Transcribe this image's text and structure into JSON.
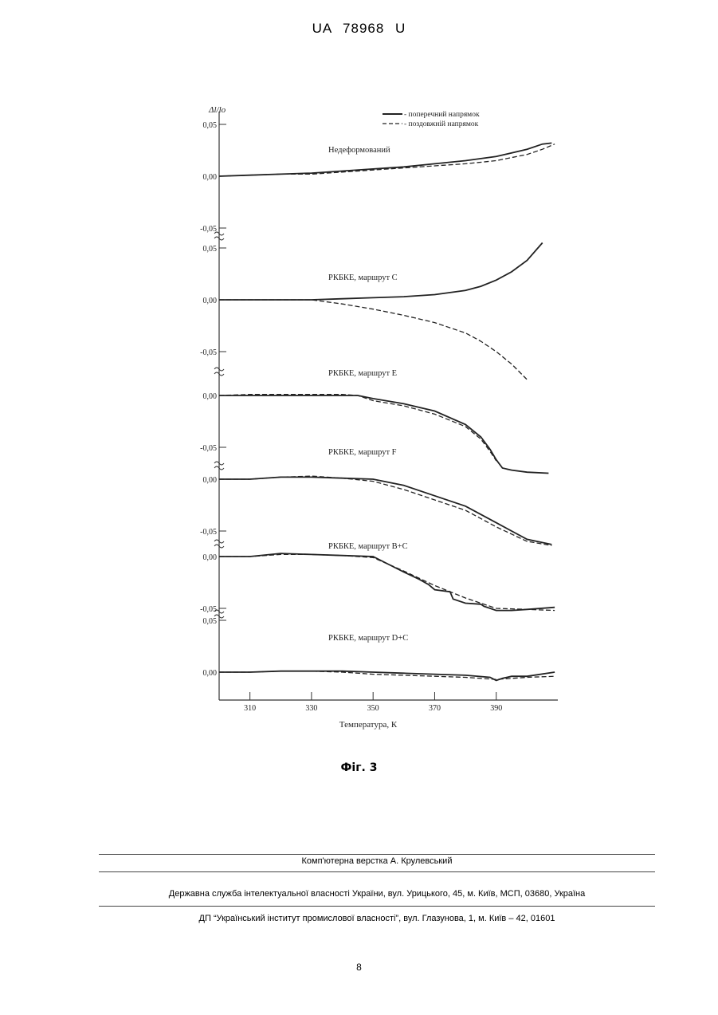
{
  "header": {
    "document_number": "UA   78968   U"
  },
  "chart_data": {
    "type": "line",
    "ylabel": "Δl/lo",
    "xlabel": "Температура, К",
    "xlim": [
      300,
      410
    ],
    "x_ticks": [
      "310",
      "330",
      "350",
      "370",
      "390"
    ],
    "legend": {
      "placement": "top-right",
      "entries": [
        {
          "label": "- поперечний напрямок",
          "style": "solid"
        },
        {
          "label": "- поздовжній напрямок",
          "style": "dashed"
        }
      ]
    },
    "panels": [
      {
        "label": "Недеформований",
        "y_ticks": [
          "0,05",
          "0,00",
          "-0,05"
        ],
        "series": [
          {
            "style": "solid",
            "x": [
              300,
              310,
              320,
              330,
              340,
              350,
              360,
              370,
              380,
              390,
              400,
              405,
              408
            ],
            "y": [
              0,
              0.001,
              0.002,
              0.003,
              0.005,
              0.007,
              0.009,
              0.012,
              0.015,
              0.019,
              0.026,
              0.031,
              0.032
            ]
          },
          {
            "style": "dashed",
            "x": [
              300,
              310,
              320,
              330,
              340,
              350,
              360,
              370,
              380,
              390,
              400,
              405,
              409
            ],
            "y": [
              0,
              0.001,
              0.002,
              0.002,
              0.004,
              0.006,
              0.008,
              0.01,
              0.012,
              0.015,
              0.021,
              0.026,
              0.031
            ]
          }
        ]
      },
      {
        "label": "РКБКЕ, маршрут С",
        "y_ticks": [
          "0,05",
          "0,00",
          "-0,05"
        ],
        "series": [
          {
            "style": "solid",
            "x": [
              300,
              310,
              320,
              330,
              340,
              350,
              360,
              370,
              380,
              385,
              390,
              395,
              400,
              405
            ],
            "y": [
              0,
              0,
              0,
              0,
              0.001,
              0.002,
              0.003,
              0.005,
              0.009,
              0.013,
              0.019,
              0.027,
              0.038,
              0.055
            ]
          },
          {
            "style": "dashed",
            "x": [
              300,
              310,
              320,
              330,
              340,
              350,
              360,
              370,
              380,
              385,
              390,
              395,
              400
            ],
            "y": [
              0,
              0,
              0,
              0,
              -0.004,
              -0.009,
              -0.015,
              -0.022,
              -0.032,
              -0.04,
              -0.05,
              -0.062,
              -0.077
            ]
          }
        ]
      },
      {
        "label": "РКБКЕ, маршрут Е",
        "y_ticks": [
          "0,00",
          "-0,05"
        ],
        "series": [
          {
            "style": "solid",
            "x": [
              300,
              310,
              320,
              330,
              340,
              345,
              350,
              360,
              370,
              380,
              385,
              388,
              390,
              392,
              395,
              400,
              407
            ],
            "y": [
              0,
              0,
              0,
              0,
              0,
              0,
              -0.003,
              -0.008,
              -0.015,
              -0.028,
              -0.04,
              -0.052,
              -0.062,
              -0.07,
              -0.072,
              -0.074,
              -0.075
            ]
          },
          {
            "style": "dashed",
            "x": [
              300,
              310,
              320,
              330,
              340,
              345,
              350,
              360,
              370,
              380,
              385,
              388,
              390
            ],
            "y": [
              0,
              0.001,
              0.001,
              0.001,
              0.001,
              0,
              -0.005,
              -0.01,
              -0.018,
              -0.03,
              -0.042,
              -0.054,
              -0.063
            ]
          }
        ]
      },
      {
        "label": "РКБКЕ, маршрут F",
        "y_ticks": [
          "0,00",
          "-0,05"
        ],
        "series": [
          {
            "style": "solid",
            "x": [
              300,
              310,
              320,
              330,
              340,
              350,
              360,
              370,
              380,
              390,
              400,
              408
            ],
            "y": [
              0,
              0,
              0.002,
              0.002,
              0.001,
              0,
              -0.006,
              -0.016,
              -0.026,
              -0.042,
              -0.058,
              -0.063
            ]
          },
          {
            "style": "dashed",
            "x": [
              300,
              310,
              320,
              330,
              340,
              350,
              360,
              370,
              380,
              390,
              400,
              408
            ],
            "y": [
              0,
              0,
              0.002,
              0.003,
              0.001,
              -0.002,
              -0.01,
              -0.02,
              -0.03,
              -0.046,
              -0.06,
              -0.064
            ]
          }
        ]
      },
      {
        "label": "РКБКЕ, маршрут В+С",
        "y_ticks": [
          "0,00",
          "-0,05"
        ],
        "series": [
          {
            "style": "solid",
            "x": [
              300,
              310,
              320,
              330,
              340,
              350,
              360,
              365,
              368,
              370,
              375,
              376,
              380,
              385,
              386,
              390,
              395,
              400,
              409
            ],
            "y": [
              0,
              0,
              0.003,
              0.002,
              0.001,
              0,
              -0.015,
              -0.022,
              -0.027,
              -0.032,
              -0.034,
              -0.041,
              -0.045,
              -0.046,
              -0.048,
              -0.052,
              -0.052,
              -0.051,
              -0.049
            ]
          },
          {
            "style": "dashed",
            "x": [
              300,
              310,
              320,
              330,
              340,
              350,
              360,
              370,
              380,
              390,
              400,
              409
            ],
            "y": [
              0,
              0,
              0.002,
              0.002,
              0.001,
              -0.001,
              -0.014,
              -0.028,
              -0.04,
              -0.05,
              -0.051,
              -0.052
            ]
          }
        ]
      },
      {
        "label": "РКБКЕ, маршрут D+С",
        "y_ticks": [
          "0,05",
          "0,00"
        ],
        "series": [
          {
            "style": "solid",
            "x": [
              300,
              310,
              320,
              330,
              340,
              350,
              360,
              370,
              380,
              388,
              390,
              392,
              395,
              400,
              409
            ],
            "y": [
              0,
              0,
              0.001,
              0.001,
              0.001,
              0,
              -0.001,
              -0.002,
              -0.003,
              -0.005,
              -0.008,
              -0.006,
              -0.004,
              -0.004,
              0
            ]
          },
          {
            "style": "dashed",
            "x": [
              300,
              310,
              320,
              330,
              340,
              350,
              360,
              370,
              380,
              390,
              400,
              409
            ],
            "y": [
              0,
              0,
              0.001,
              0.001,
              0,
              -0.002,
              -0.003,
              -0.004,
              -0.005,
              -0.007,
              -0.005,
              -0.004
            ]
          }
        ]
      }
    ]
  },
  "figure": {
    "caption": "Фіг. 3"
  },
  "footer": {
    "layout_credit": "Комп'ютерна верстка А. Крулевський",
    "agency": "Державна служба інтелектуальної власності України, вул. Урицького, 45, м. Київ, МСП, 03680, Україна",
    "institute": "ДП “Український інститут промислової власності”, вул. Глазунова, 1, м. Київ – 42, 01601",
    "page_number": "8"
  }
}
